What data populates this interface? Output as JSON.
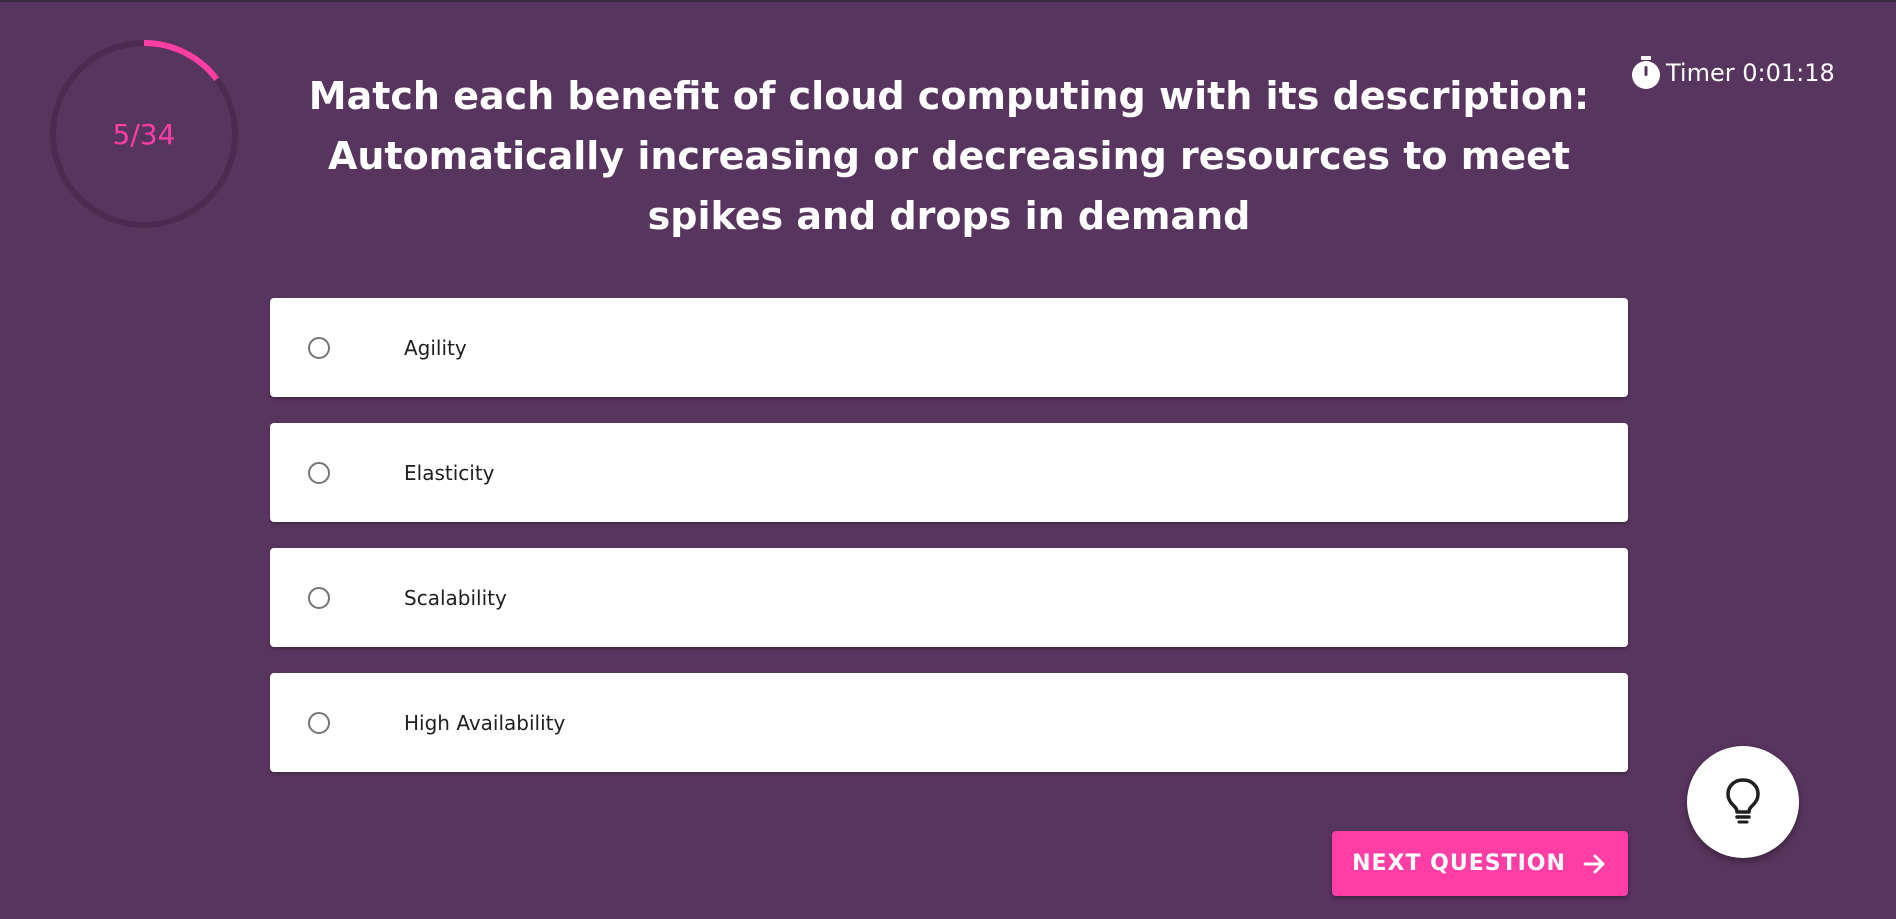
{
  "progress": {
    "label": "5/34",
    "current": 5,
    "total": 34,
    "ring_color": "#ff3ea5",
    "track_color": "#4a2c50"
  },
  "timer": {
    "label": "Timer 0:01:18",
    "icon": "stopwatch-icon"
  },
  "question": {
    "text": "Match each benefit of cloud computing with its description: Automatically increasing or decreasing resources to meet spikes and drops in demand"
  },
  "options": [
    {
      "label": "Agility",
      "selected": false
    },
    {
      "label": "Elasticity",
      "selected": false
    },
    {
      "label": "Scalability",
      "selected": false
    },
    {
      "label": "High Availability",
      "selected": false
    }
  ],
  "next_button": {
    "label": "NEXT QUESTION",
    "icon": "arrow-right-icon"
  },
  "hint_button": {
    "icon": "lightbulb-icon"
  },
  "colors": {
    "background": "#58355e",
    "accent": "#ff3ea5",
    "card": "#ffffff"
  }
}
